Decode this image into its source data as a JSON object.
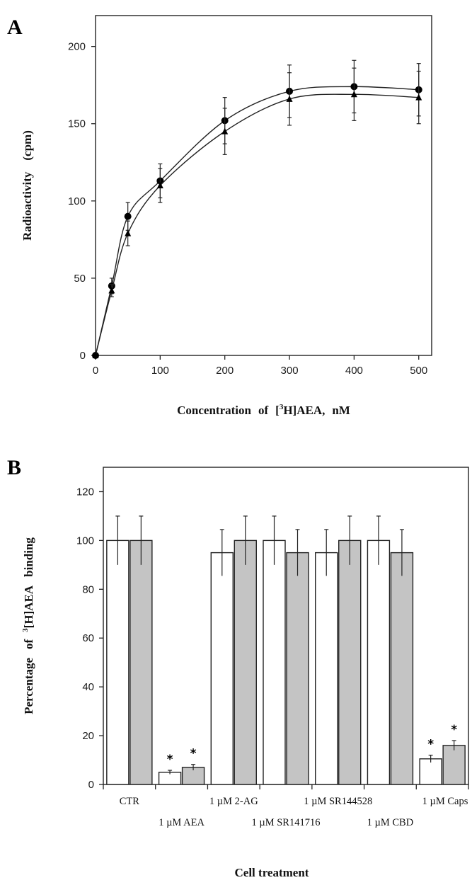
{
  "chart_data": [
    {
      "panel": "A",
      "type": "line",
      "xlabel_parts": [
        "Concentration",
        "of",
        "[",
        "3",
        "H]AEA,",
        "nM"
      ],
      "ylabel_parts": [
        "Radioactivity",
        "(cpm)"
      ],
      "xlim": [
        0,
        520
      ],
      "ylim": [
        0,
        220
      ],
      "x_ticks": [
        0,
        100,
        200,
        300,
        400,
        500
      ],
      "y_ticks": [
        0,
        50,
        100,
        150,
        200
      ],
      "series": [
        {
          "marker": "circle",
          "x": [
            0,
            25,
            50,
            100,
            200,
            300,
            400,
            500
          ],
          "y": [
            0,
            45,
            90,
            113,
            152,
            171,
            174,
            172
          ],
          "err": [
            0,
            5,
            9,
            11,
            15,
            17,
            17,
            17
          ]
        },
        {
          "marker": "triangle",
          "x": [
            0,
            25,
            50,
            100,
            200,
            300,
            400,
            500
          ],
          "y": [
            0,
            42,
            79,
            110,
            145,
            166,
            169,
            167
          ],
          "err": [
            0,
            4,
            8,
            11,
            15,
            17,
            17,
            17
          ]
        }
      ]
    },
    {
      "panel": "B",
      "type": "bar",
      "xlabel": "Cell treatment",
      "ylabel_parts": [
        "Percentage",
        "of",
        "3",
        "[H]AEA",
        "binding"
      ],
      "ylim": [
        0,
        130
      ],
      "y_ticks": [
        0,
        20,
        40,
        60,
        80,
        100,
        120
      ],
      "categories": [
        "CTR",
        "1 µM AEA",
        "1 µM 2-AG",
        "1 µM SR141716",
        "1 µM SR144528",
        "1 µM CBD",
        "1 µM Caps"
      ],
      "series": [
        {
          "style": "white",
          "values": [
            100,
            5,
            95,
            100,
            95,
            100,
            10.5
          ],
          "err": [
            10,
            0.8,
            9.5,
            10,
            9.5,
            10,
            1.5
          ]
        },
        {
          "style": "grey",
          "values": [
            100,
            7,
            100,
            95,
            100,
            95,
            16
          ],
          "err": [
            10,
            1.2,
            10,
            9.5,
            10,
            9.5,
            2
          ]
        }
      ],
      "significance_marker": "*",
      "significant_categories": [
        "1 µM AEA",
        "1 µM Caps"
      ]
    }
  ]
}
